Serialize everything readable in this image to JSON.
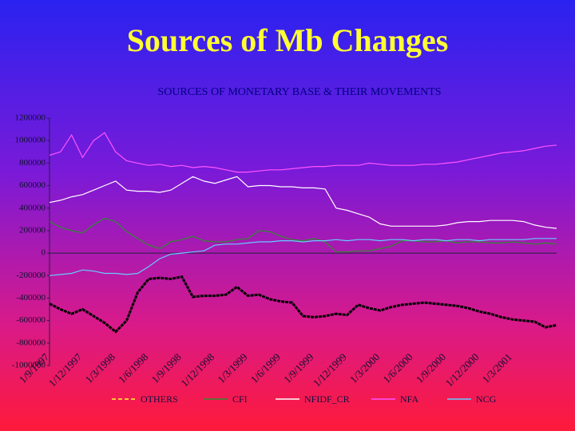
{
  "chart_data": {
    "type": "line",
    "title": "Sources of Mb Changes",
    "subtitle": "SOURCES OF MONETARY BASE & THEIR MOVEMENTS",
    "categories": [
      "1/9/1997",
      null,
      null,
      "1/12/1997",
      null,
      null,
      "1/3/1998",
      null,
      null,
      "1/6/1998",
      null,
      null,
      "1/9/1998",
      null,
      null,
      "1/12/1998",
      null,
      null,
      "1/3/1999",
      null,
      null,
      "1/6/1999",
      null,
      null,
      "1/9/1999",
      null,
      null,
      "1/12/1999",
      null,
      null,
      "1/3/2000",
      null,
      null,
      "1/6/2000",
      null,
      null,
      "1/9/2000",
      null,
      null,
      "1/12/2000",
      null,
      null,
      "1/3/2001",
      null,
      null,
      null,
      null
    ],
    "ylim": [
      -1000000,
      1200000
    ],
    "yticks": [
      -1000000,
      -800000,
      -600000,
      -400000,
      -200000,
      0,
      200000,
      400000,
      600000,
      800000,
      1000000,
      1200000
    ],
    "series": [
      {
        "name": "OTHERS",
        "color": "#000000",
        "dashed": true,
        "values": [
          -450000,
          -500000,
          -540000,
          -500000,
          -560000,
          -620000,
          -700000,
          -600000,
          -350000,
          -230000,
          -220000,
          -230000,
          -210000,
          -390000,
          -380000,
          -380000,
          -370000,
          -300000,
          -380000,
          -370000,
          -410000,
          -430000,
          -440000,
          -560000,
          -570000,
          -560000,
          -540000,
          -550000,
          -460000,
          -490000,
          -510000,
          -480000,
          -460000,
          -450000,
          -440000,
          -450000,
          -460000,
          -470000,
          -490000,
          -520000,
          -540000,
          -570000,
          -590000,
          -600000,
          -610000,
          -660000,
          -640000
        ]
      },
      {
        "name": "CFI",
        "color": "#2e8b2e",
        "dashed": false,
        "values": [
          280000,
          230000,
          200000,
          180000,
          250000,
          310000,
          280000,
          190000,
          130000,
          70000,
          40000,
          100000,
          120000,
          150000,
          110000,
          100000,
          100000,
          120000,
          130000,
          200000,
          190000,
          150000,
          120000,
          110000,
          130000,
          100000,
          10000,
          10000,
          20000,
          20000,
          40000,
          60000,
          110000,
          110000,
          100000,
          100000,
          110000,
          90000,
          100000,
          100000,
          90000,
          90000,
          100000,
          90000,
          80000,
          90000,
          80000
        ]
      },
      {
        "name": "NFIDF_CR",
        "color": "#ffffff",
        "dashed": false,
        "values": [
          450000,
          470000,
          500000,
          520000,
          560000,
          600000,
          640000,
          560000,
          550000,
          550000,
          540000,
          560000,
          620000,
          680000,
          640000,
          620000,
          650000,
          680000,
          590000,
          600000,
          600000,
          590000,
          590000,
          580000,
          580000,
          570000,
          400000,
          380000,
          350000,
          320000,
          260000,
          240000,
          240000,
          240000,
          240000,
          240000,
          250000,
          270000,
          280000,
          280000,
          290000,
          290000,
          290000,
          280000,
          250000,
          230000,
          220000
        ]
      },
      {
        "name": "NFA",
        "color": "#ff55ff",
        "dashed": false,
        "values": [
          870000,
          900000,
          1050000,
          850000,
          1000000,
          1070000,
          900000,
          820000,
          800000,
          780000,
          790000,
          770000,
          780000,
          760000,
          770000,
          760000,
          740000,
          720000,
          720000,
          730000,
          740000,
          740000,
          750000,
          760000,
          770000,
          770000,
          780000,
          780000,
          780000,
          800000,
          790000,
          780000,
          780000,
          780000,
          790000,
          790000,
          800000,
          810000,
          830000,
          850000,
          870000,
          890000,
          900000,
          910000,
          930000,
          950000,
          960000
        ]
      },
      {
        "name": "NCG",
        "color": "#66ccff",
        "dashed": false,
        "values": [
          -200000,
          -190000,
          -180000,
          -150000,
          -160000,
          -180000,
          -180000,
          -190000,
          -180000,
          -120000,
          -50000,
          -10000,
          0,
          10000,
          20000,
          70000,
          80000,
          80000,
          90000,
          100000,
          100000,
          110000,
          110000,
          100000,
          110000,
          110000,
          120000,
          110000,
          120000,
          120000,
          110000,
          120000,
          120000,
          110000,
          120000,
          120000,
          110000,
          120000,
          120000,
          110000,
          120000,
          120000,
          120000,
          120000,
          130000,
          130000,
          130000
        ]
      }
    ]
  }
}
